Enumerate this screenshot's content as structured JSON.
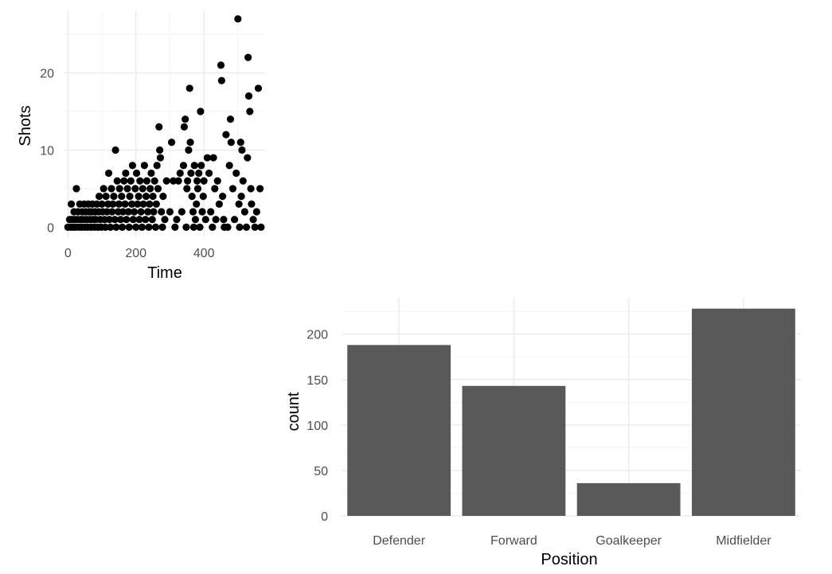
{
  "chart_data": [
    {
      "type": "scatter",
      "xlabel": "Time",
      "ylabel": "Shots",
      "xlim": [
        -10,
        580
      ],
      "ylim": [
        -1.3,
        28
      ],
      "xticks": [
        0,
        200,
        400
      ],
      "yticks": [
        0,
        10,
        20
      ],
      "grid": true,
      "point_color": "#000000",
      "points": [
        [
          0,
          0
        ],
        [
          5,
          1
        ],
        [
          8,
          0
        ],
        [
          10,
          3
        ],
        [
          12,
          1
        ],
        [
          15,
          0
        ],
        [
          18,
          2
        ],
        [
          20,
          1
        ],
        [
          22,
          0
        ],
        [
          25,
          5
        ],
        [
          28,
          1
        ],
        [
          30,
          2
        ],
        [
          32,
          0
        ],
        [
          35,
          3
        ],
        [
          38,
          1
        ],
        [
          40,
          0
        ],
        [
          42,
          2
        ],
        [
          45,
          1
        ],
        [
          48,
          3
        ],
        [
          50,
          0
        ],
        [
          52,
          2
        ],
        [
          55,
          1
        ],
        [
          58,
          0
        ],
        [
          60,
          3
        ],
        [
          62,
          2
        ],
        [
          65,
          1
        ],
        [
          68,
          0
        ],
        [
          70,
          2
        ],
        [
          72,
          3
        ],
        [
          75,
          1
        ],
        [
          78,
          0
        ],
        [
          80,
          2
        ],
        [
          82,
          1
        ],
        [
          85,
          3
        ],
        [
          88,
          0
        ],
        [
          90,
          2
        ],
        [
          92,
          4
        ],
        [
          95,
          1
        ],
        [
          98,
          0
        ],
        [
          100,
          3
        ],
        [
          102,
          2
        ],
        [
          105,
          5
        ],
        [
          108,
          1
        ],
        [
          110,
          0
        ],
        [
          112,
          4
        ],
        [
          115,
          2
        ],
        [
          118,
          3
        ],
        [
          120,
          7
        ],
        [
          122,
          1
        ],
        [
          125,
          0
        ],
        [
          128,
          5
        ],
        [
          130,
          2
        ],
        [
          132,
          3
        ],
        [
          135,
          4
        ],
        [
          138,
          1
        ],
        [
          140,
          10
        ],
        [
          142,
          0
        ],
        [
          145,
          6
        ],
        [
          148,
          2
        ],
        [
          150,
          3
        ],
        [
          152,
          5
        ],
        [
          155,
          1
        ],
        [
          158,
          4
        ],
        [
          160,
          0
        ],
        [
          162,
          2
        ],
        [
          165,
          6
        ],
        [
          168,
          3
        ],
        [
          170,
          7
        ],
        [
          172,
          1
        ],
        [
          175,
          5
        ],
        [
          178,
          2
        ],
        [
          180,
          0
        ],
        [
          182,
          4
        ],
        [
          185,
          6
        ],
        [
          188,
          3
        ],
        [
          190,
          8
        ],
        [
          192,
          1
        ],
        [
          195,
          2
        ],
        [
          198,
          5
        ],
        [
          200,
          0
        ],
        [
          202,
          7
        ],
        [
          205,
          3
        ],
        [
          208,
          4
        ],
        [
          210,
          1
        ],
        [
          212,
          6
        ],
        [
          215,
          2
        ],
        [
          218,
          0
        ],
        [
          220,
          5
        ],
        [
          222,
          3
        ],
        [
          225,
          8
        ],
        [
          228,
          1
        ],
        [
          230,
          4
        ],
        [
          232,
          6
        ],
        [
          235,
          2
        ],
        [
          238,
          0
        ],
        [
          240,
          3
        ],
        [
          242,
          5
        ],
        [
          245,
          7
        ],
        [
          248,
          1
        ],
        [
          250,
          4
        ],
        [
          252,
          2
        ],
        [
          255,
          6
        ],
        [
          258,
          0
        ],
        [
          260,
          3
        ],
        [
          262,
          8
        ],
        [
          265,
          5
        ],
        [
          268,
          13
        ],
        [
          270,
          10
        ],
        [
          272,
          9
        ],
        [
          275,
          2
        ],
        [
          278,
          0
        ],
        [
          280,
          4
        ],
        [
          285,
          1
        ],
        [
          290,
          6
        ],
        [
          300,
          2
        ],
        [
          305,
          11
        ],
        [
          310,
          6
        ],
        [
          315,
          0
        ],
        [
          320,
          1
        ],
        [
          325,
          6
        ],
        [
          330,
          7
        ],
        [
          335,
          2
        ],
        [
          340,
          8
        ],
        [
          342,
          13
        ],
        [
          345,
          14
        ],
        [
          348,
          0
        ],
        [
          350,
          5
        ],
        [
          352,
          6
        ],
        [
          355,
          10
        ],
        [
          358,
          18
        ],
        [
          360,
          11
        ],
        [
          362,
          7
        ],
        [
          365,
          4
        ],
        [
          368,
          2
        ],
        [
          370,
          0
        ],
        [
          372,
          8
        ],
        [
          375,
          1
        ],
        [
          378,
          3
        ],
        [
          380,
          6
        ],
        [
          382,
          5
        ],
        [
          385,
          7
        ],
        [
          388,
          0
        ],
        [
          390,
          15
        ],
        [
          392,
          8
        ],
        [
          395,
          2
        ],
        [
          398,
          4
        ],
        [
          400,
          6
        ],
        [
          405,
          1
        ],
        [
          410,
          9
        ],
        [
          415,
          7
        ],
        [
          420,
          2
        ],
        [
          425,
          0
        ],
        [
          428,
          9
        ],
        [
          432,
          5
        ],
        [
          435,
          1
        ],
        [
          440,
          6
        ],
        [
          445,
          3
        ],
        [
          450,
          21
        ],
        [
          452,
          19
        ],
        [
          455,
          4
        ],
        [
          458,
          1
        ],
        [
          460,
          0
        ],
        [
          465,
          12
        ],
        [
          470,
          0
        ],
        [
          475,
          8
        ],
        [
          478,
          14
        ],
        [
          480,
          11
        ],
        [
          485,
          5
        ],
        [
          490,
          1
        ],
        [
          495,
          7
        ],
        [
          500,
          27
        ],
        [
          503,
          3
        ],
        [
          505,
          0
        ],
        [
          508,
          11
        ],
        [
          510,
          4
        ],
        [
          512,
          10
        ],
        [
          515,
          6
        ],
        [
          520,
          2
        ],
        [
          525,
          0
        ],
        [
          528,
          9
        ],
        [
          530,
          22
        ],
        [
          532,
          17
        ],
        [
          535,
          15
        ],
        [
          538,
          5
        ],
        [
          540,
          3
        ],
        [
          545,
          1
        ],
        [
          550,
          0
        ],
        [
          555,
          2
        ],
        [
          560,
          18
        ],
        [
          565,
          5
        ],
        [
          568,
          0
        ]
      ]
    },
    {
      "type": "bar",
      "xlabel": "Position",
      "ylabel": "count",
      "categories": [
        "Defender",
        "Forward",
        "Goalkeeper",
        "Midfielder"
      ],
      "values": [
        188,
        143,
        36,
        228
      ],
      "ylim": [
        0,
        240
      ],
      "yticks": [
        0,
        50,
        100,
        150,
        200
      ],
      "bar_color": "#595959",
      "grid": true
    }
  ]
}
